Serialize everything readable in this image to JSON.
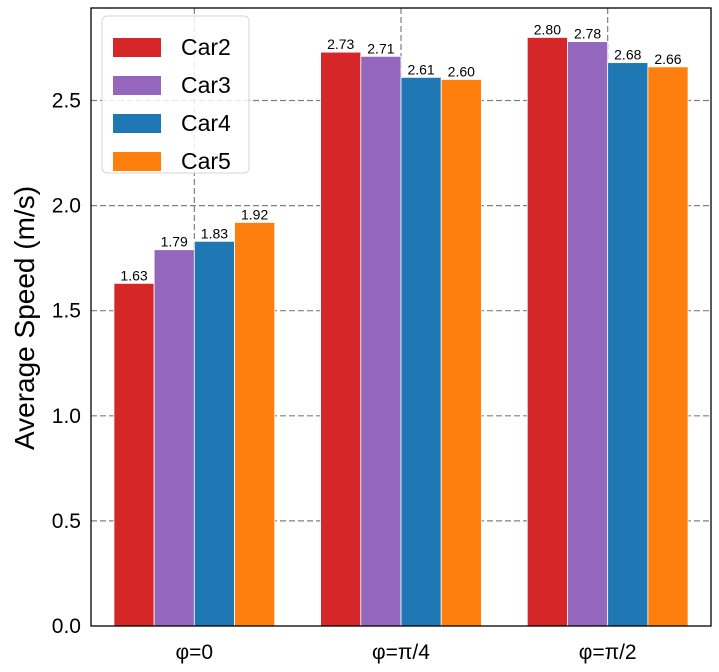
{
  "chart_data": {
    "type": "bar",
    "title": "",
    "xlabel": "",
    "ylabel": "Average Speed (m/s)",
    "categories": [
      "φ=0",
      "φ=π/4",
      "φ=π/2"
    ],
    "series": [
      {
        "name": "Car2",
        "color": "#d62728",
        "values": [
          1.63,
          2.73,
          2.8
        ],
        "labels": [
          "1.63",
          "2.73",
          "2.80"
        ]
      },
      {
        "name": "Car3",
        "color": "#9467bd",
        "values": [
          1.79,
          2.71,
          2.78
        ],
        "labels": [
          "1.79",
          "2.71",
          "2.78"
        ]
      },
      {
        "name": "Car4",
        "color": "#1f77b4",
        "values": [
          1.83,
          2.61,
          2.68
        ],
        "labels": [
          "1.83",
          "2.61",
          "2.68"
        ]
      },
      {
        "name": "Car5",
        "color": "#ff7f0e",
        "values": [
          1.92,
          2.6,
          2.66
        ],
        "labels": [
          "1.92",
          "2.60",
          "2.66"
        ]
      }
    ],
    "ylim": [
      0,
      2.94
    ],
    "yticks": [
      0.0,
      0.5,
      1.0,
      1.5,
      2.0,
      2.5
    ],
    "ytick_labels": [
      "0.0",
      "0.5",
      "1.0",
      "1.5",
      "2.0",
      "2.5"
    ],
    "grid": true,
    "grid_style": "dashed",
    "legend_position": "top-left"
  }
}
